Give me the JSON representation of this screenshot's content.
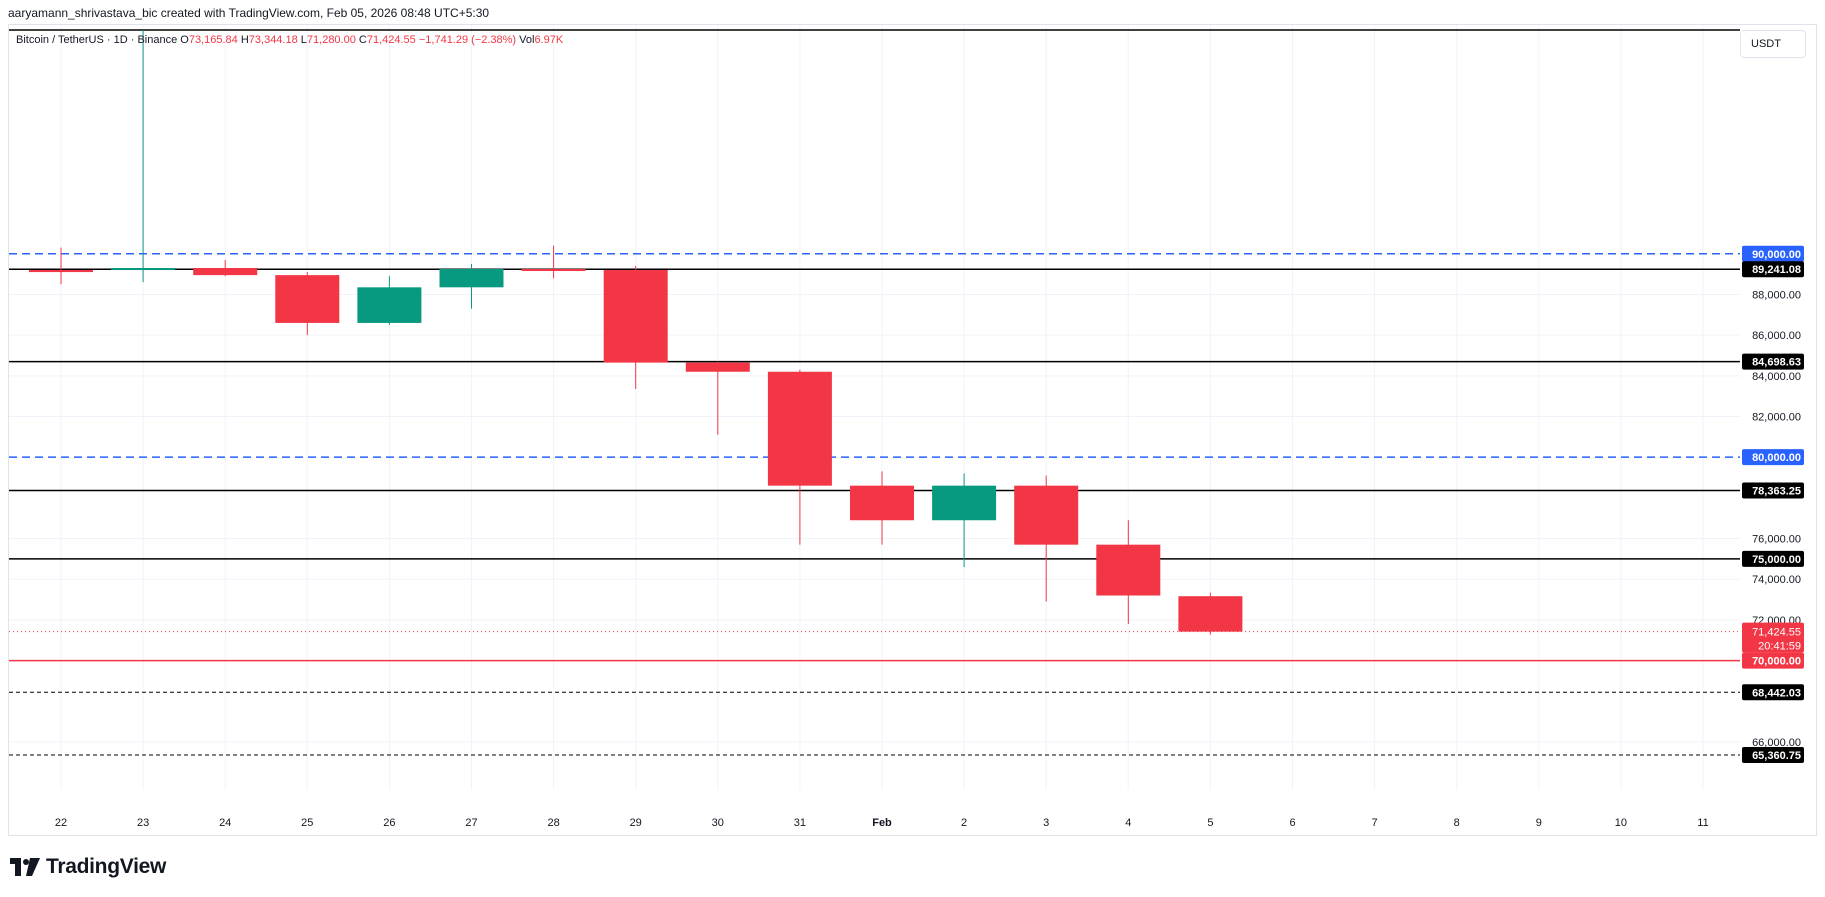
{
  "attribution": "aaryamann_shrivastava_bic created with TradingView.com, Feb 05, 2026 08:48 UTC+5:30",
  "legend": {
    "symbol": "Bitcoin / TetherUS · 1D · Binance",
    "open_label": "O",
    "open": "73,165.84",
    "high_label": "H",
    "high": "73,344.18",
    "low_label": "L",
    "low": "71,280.00",
    "close_label": "C",
    "close": "71,424.55",
    "change": "−1,741.29 (−2.38%)",
    "vol_label": "Vol",
    "vol": "6.97K"
  },
  "unit": "USDT",
  "brand": "TradingView",
  "colors": {
    "up": "#089981",
    "down": "#f23645",
    "dashed_blue": "#2962ff",
    "black": "#000000",
    "red_line": "#f23645"
  },
  "chart_data": {
    "type": "candlestick",
    "x_ticks": [
      "22",
      "23",
      "24",
      "25",
      "26",
      "27",
      "28",
      "29",
      "30",
      "31",
      "Feb",
      "2",
      "3",
      "4",
      "5",
      "6",
      "7",
      "8",
      "9",
      "10",
      "11"
    ],
    "y_ticks": [
      88000,
      86000,
      84000,
      82000,
      76000,
      74000,
      72000,
      66000
    ],
    "y_tick_labels": [
      "88,000.00",
      "86,000.00",
      "84,000.00",
      "82,000.00",
      "76,000.00",
      "74,000.00",
      "72,000.00",
      "66,000.00"
    ],
    "ylim": [
      63000,
      101000
    ],
    "candles": [
      {
        "x": "22",
        "o": 89200,
        "h": 90300,
        "l": 88500,
        "c": 89100
      },
      {
        "x": "23",
        "o": 89200,
        "h": 101000,
        "l": 88600,
        "c": 89300
      },
      {
        "x": "24",
        "o": 89300,
        "h": 89700,
        "l": 88900,
        "c": 88950
      },
      {
        "x": "25",
        "o": 88950,
        "h": 89100,
        "l": 86000,
        "c": 86600
      },
      {
        "x": "26",
        "o": 86600,
        "h": 88900,
        "l": 86500,
        "c": 88350
      },
      {
        "x": "27",
        "o": 88350,
        "h": 89500,
        "l": 87300,
        "c": 89250
      },
      {
        "x": "28",
        "o": 89250,
        "h": 90400,
        "l": 88800,
        "c": 89200
      },
      {
        "x": "29",
        "o": 89200,
        "h": 89400,
        "l": 83350,
        "c": 84650
      },
      {
        "x": "30",
        "o": 84650,
        "h": 84700,
        "l": 81100,
        "c": 84200
      },
      {
        "x": "31",
        "o": 84200,
        "h": 84300,
        "l": 75700,
        "c": 78600
      },
      {
        "x": "Feb",
        "o": 78600,
        "h": 79300,
        "l": 75700,
        "c": 76900
      },
      {
        "x": "2",
        "o": 76900,
        "h": 79200,
        "l": 74600,
        "c": 78600
      },
      {
        "x": "3",
        "o": 78600,
        "h": 79100,
        "l": 72900,
        "c": 75700
      },
      {
        "x": "4",
        "o": 75700,
        "h": 76900,
        "l": 71800,
        "c": 73200
      },
      {
        "x": "5",
        "o": 73165.84,
        "h": 73344.18,
        "l": 71280.0,
        "c": 71424.55
      }
    ],
    "levels": [
      {
        "value": 90000.0,
        "label": "90,000.00",
        "style": "blue-dashed"
      },
      {
        "value": 89241.08,
        "label": "89,241.08",
        "style": "black-solid"
      },
      {
        "value": 84698.63,
        "label": "84,698.63",
        "style": "black-solid"
      },
      {
        "value": 80000.0,
        "label": "80,000.00",
        "style": "blue-dashed"
      },
      {
        "value": 78363.25,
        "label": "78,363.25",
        "style": "black-solid"
      },
      {
        "value": 75000.0,
        "label": "75,000.00",
        "style": "black-solid"
      },
      {
        "value": 70000.0,
        "label": "70,000.00",
        "style": "red-solid"
      },
      {
        "value": 68442.03,
        "label": "68,442.03",
        "style": "black-dashed"
      },
      {
        "value": 65360.75,
        "label": "65,360.75",
        "style": "black-dashed"
      }
    ],
    "current_price": {
      "value": 71424.55,
      "label": "71,424.55",
      "countdown": "20:41:59"
    },
    "top_line_value": 101000
  }
}
